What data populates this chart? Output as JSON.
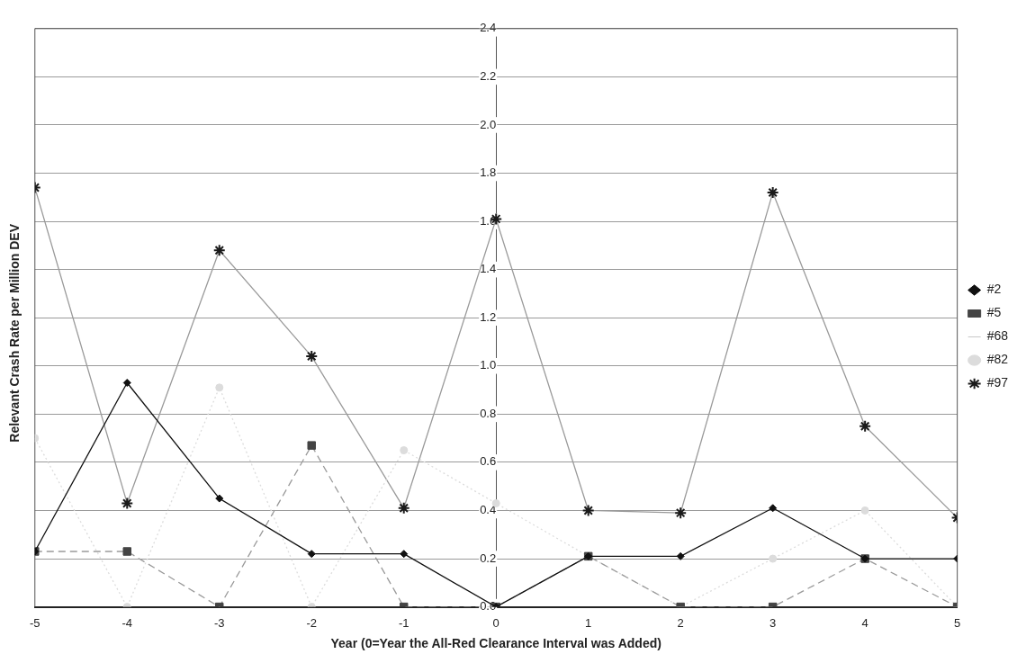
{
  "chart_data": {
    "type": "line",
    "xlabel": "Year (0=Year the All-Red Clearance Interval was Added)",
    "ylabel": "Relevant Crash Rate per Million DEV",
    "x": [
      -5,
      -4,
      -3,
      -2,
      -1,
      0,
      1,
      2,
      3,
      4,
      5
    ],
    "xlim": [
      -5,
      5
    ],
    "xticks": [
      -5,
      -4,
      -3,
      -2,
      -1,
      0,
      1,
      2,
      3,
      4,
      5
    ],
    "ylim": [
      0,
      2.4
    ],
    "yticks": [
      {
        "value": 0,
        "label": "0.0"
      },
      0.2,
      0.4,
      0.6,
      0.8,
      {
        "value": 1,
        "label": "1.0"
      },
      1.2,
      1.4,
      1.6,
      1.8,
      {
        "value": 2,
        "label": "2.0"
      },
      2.2,
      2.4
    ],
    "grid": "y",
    "legend": "right",
    "series": [
      {
        "name": "#2",
        "color": "#111111",
        "marker": "diamond",
        "line_style": "solid",
        "values": [
          0.23,
          0.93,
          0.45,
          0.22,
          0.22,
          0.0,
          0.21,
          0.21,
          0.41,
          0.2,
          0.2
        ]
      },
      {
        "name": "#5",
        "color": "#444444",
        "marker": "square",
        "line_style": "dashed",
        "values": [
          0.23,
          0.23,
          0.0,
          0.67,
          0.0,
          0.0,
          0.21,
          0.0,
          0.0,
          0.2,
          0.0
        ]
      },
      {
        "name": "#68",
        "marker": "none",
        "line_style": "solid",
        "values": [
          null,
          null,
          null,
          null,
          null,
          null,
          null,
          null,
          null,
          null,
          null
        ]
      },
      {
        "name": "#82",
        "color": "#dcdcdc",
        "marker": "circle",
        "line_style": "dotted",
        "values": [
          0.7,
          0.0,
          0.91,
          0.0,
          0.65,
          0.43,
          0.21,
          0.0,
          0.2,
          0.4,
          0.0
        ]
      },
      {
        "name": "#97",
        "color": "#1a1a1a",
        "marker": "cross",
        "line_style": "solid",
        "values": [
          1.74,
          0.43,
          1.48,
          1.04,
          0.41,
          1.61,
          0.4,
          0.39,
          1.72,
          0.75,
          0.37
        ]
      }
    ]
  }
}
